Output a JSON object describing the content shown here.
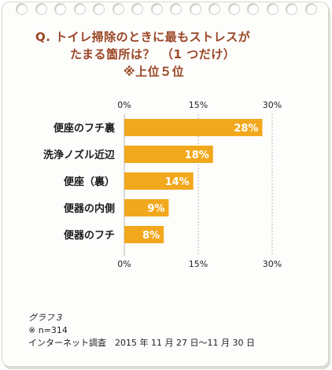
{
  "title": {
    "line1": "Q. トイレ掃除のときに最もストレスが",
    "line2": "たまる箇所は？　（1 つだけ）",
    "line3": "※上位５位"
  },
  "footer": {
    "caption": "グラフ３",
    "sample": "※ n=314",
    "survey": "インターネット調査　2015 年 11 月 27 日～11 月 30 日"
  },
  "colors": {
    "bar": "#f2a81d",
    "grid": "#b7b7b7",
    "title": "#9a4525"
  },
  "chart_data": {
    "type": "bar",
    "orientation": "horizontal",
    "categories": [
      "便座のフチ裏",
      "洗浄ノズル近辺",
      "便座（裏）",
      "便器の内側",
      "便器のフチ"
    ],
    "values": [
      28,
      18,
      14,
      9,
      8
    ],
    "value_labels": [
      "28%",
      "18%",
      "14%",
      "9%",
      "8%"
    ],
    "xlim": [
      0,
      30
    ],
    "ticks": [
      0,
      15,
      30
    ],
    "tick_labels": [
      "0%",
      "15%",
      "30%"
    ],
    "grid": true
  }
}
